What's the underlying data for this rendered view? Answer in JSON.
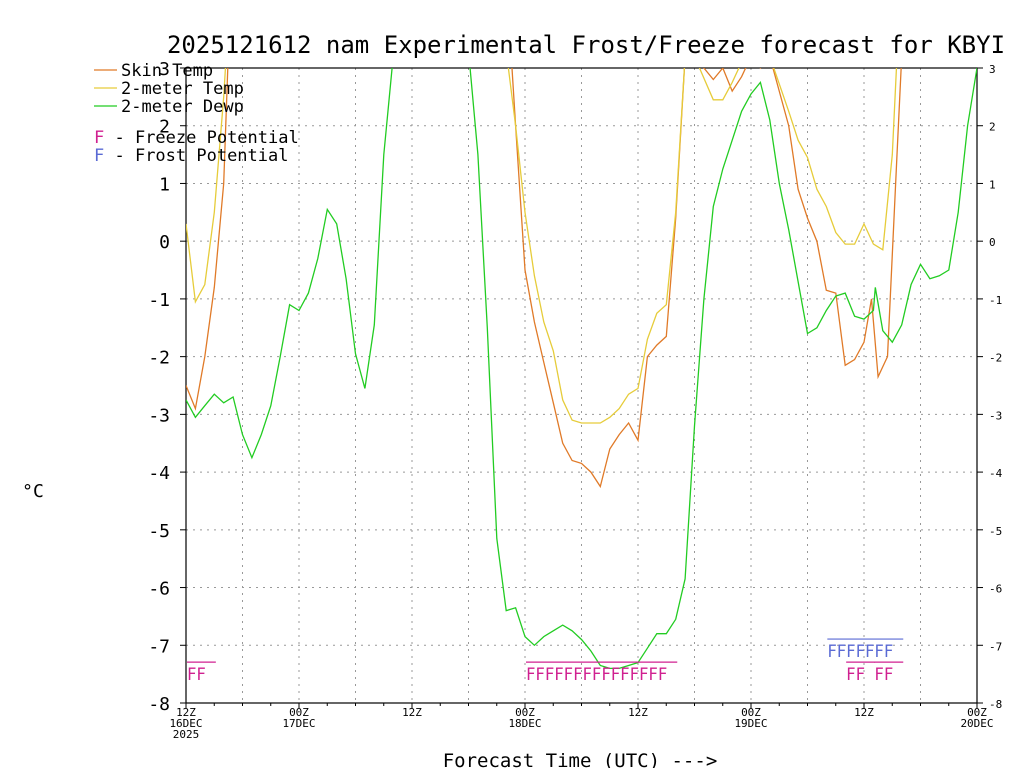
{
  "chart_data": {
    "type": "line",
    "title": "2025121612 nam Experimental Frost/Freeze forecast for KBYI",
    "xlabel": "Forecast Time (UTC) --->",
    "ylabel": "°C",
    "ylim": [
      -8,
      3
    ],
    "yticks": [
      "-8",
      "-7",
      "-6",
      "-5",
      "-4",
      "-3",
      "-2",
      "-1",
      "0",
      "1",
      "2",
      "3"
    ],
    "xlim_hours": [
      0,
      84
    ],
    "xticks": [
      {
        "hour": 0,
        "line1": "12Z",
        "line2": "16DEC",
        "line3": "2025"
      },
      {
        "hour": 12,
        "line1": "00Z",
        "line2": "17DEC",
        "line3": ""
      },
      {
        "hour": 24,
        "line1": "12Z",
        "line2": "",
        "line3": ""
      },
      {
        "hour": 36,
        "line1": "00Z",
        "line2": "18DEC",
        "line3": ""
      },
      {
        "hour": 48,
        "line1": "12Z",
        "line2": "",
        "line3": ""
      },
      {
        "hour": 60,
        "line1": "00Z",
        "line2": "19DEC",
        "line3": ""
      },
      {
        "hour": 72,
        "line1": "12Z",
        "line2": "",
        "line3": ""
      },
      {
        "hour": 84,
        "line1": "00Z",
        "line2": "20DEC",
        "line3": ""
      }
    ],
    "series": [
      {
        "name": "Skin Temp",
        "color": "#e07a28",
        "points": [
          [
            0,
            -2.5
          ],
          [
            1,
            -2.9
          ],
          [
            2,
            -2.0
          ],
          [
            3,
            -0.8
          ],
          [
            4,
            1.0
          ],
          [
            4.5,
            3.3
          ],
          [
            34.5,
            3.3
          ],
          [
            35,
            2.0
          ],
          [
            36,
            -0.5
          ],
          [
            37,
            -1.4
          ],
          [
            38,
            -2.1
          ],
          [
            39,
            -2.8
          ],
          [
            40,
            -3.5
          ],
          [
            41,
            -3.8
          ],
          [
            42,
            -3.85
          ],
          [
            43,
            -4.0
          ],
          [
            44,
            -4.25
          ],
          [
            45,
            -3.6
          ],
          [
            46,
            -3.35
          ],
          [
            47,
            -3.15
          ],
          [
            48,
            -3.45
          ],
          [
            49,
            -2.0
          ],
          [
            50,
            -1.8
          ],
          [
            51,
            -1.65
          ],
          [
            52,
            0.4
          ],
          [
            53,
            3.2
          ],
          [
            54,
            3.2
          ],
          [
            56,
            2.8
          ],
          [
            57,
            3.0
          ],
          [
            58,
            2.6
          ],
          [
            59,
            2.85
          ],
          [
            60,
            3.2
          ],
          [
            61,
            3.0
          ],
          [
            62,
            3.2
          ],
          [
            64,
            2.0
          ],
          [
            65,
            0.9
          ],
          [
            66,
            0.4
          ],
          [
            67,
            0.0
          ],
          [
            68,
            -0.85
          ],
          [
            69,
            -0.9
          ],
          [
            70,
            -2.15
          ],
          [
            71,
            -2.05
          ],
          [
            72,
            -1.75
          ],
          [
            72.8,
            -1.0
          ],
          [
            73.5,
            -2.35
          ],
          [
            74.5,
            -2.0
          ],
          [
            75.5,
            1.5
          ],
          [
            76,
            3.2
          ]
        ]
      },
      {
        "name": "2-meter Temp",
        "color": "#e6cc3a",
        "points": [
          [
            0,
            0.3
          ],
          [
            1,
            -1.05
          ],
          [
            2,
            -0.75
          ],
          [
            3,
            0.5
          ],
          [
            4,
            2.5
          ],
          [
            4.3,
            3.3
          ],
          [
            34,
            3.3
          ],
          [
            35,
            2.0
          ],
          [
            36,
            0.5
          ],
          [
            37,
            -0.6
          ],
          [
            38,
            -1.4
          ],
          [
            39,
            -1.9
          ],
          [
            40,
            -2.75
          ],
          [
            41,
            -3.1
          ],
          [
            42,
            -3.15
          ],
          [
            43,
            -3.15
          ],
          [
            44,
            -3.15
          ],
          [
            45,
            -3.05
          ],
          [
            46,
            -2.9
          ],
          [
            47,
            -2.65
          ],
          [
            48,
            -2.55
          ],
          [
            49,
            -1.7
          ],
          [
            50,
            -1.25
          ],
          [
            51,
            -1.1
          ],
          [
            52,
            0.5
          ],
          [
            53,
            3.2
          ],
          [
            54,
            3.2
          ],
          [
            56,
            2.45
          ],
          [
            57,
            2.45
          ],
          [
            58,
            2.75
          ],
          [
            59,
            3.1
          ],
          [
            60,
            3.2
          ],
          [
            61,
            3.15
          ],
          [
            62,
            3.2
          ],
          [
            64,
            2.25
          ],
          [
            65,
            1.75
          ],
          [
            66,
            1.45
          ],
          [
            67,
            0.9
          ],
          [
            68,
            0.6
          ],
          [
            69,
            0.15
          ],
          [
            70,
            -0.05
          ],
          [
            71,
            -0.05
          ],
          [
            72,
            0.3
          ],
          [
            73,
            -0.05
          ],
          [
            74,
            -0.15
          ],
          [
            75,
            1.5
          ],
          [
            75.5,
            3.2
          ]
        ]
      },
      {
        "name": "2-meter Dewp",
        "color": "#22cc22",
        "points": [
          [
            0,
            -2.75
          ],
          [
            1,
            -3.05
          ],
          [
            2,
            -2.85
          ],
          [
            3,
            -2.65
          ],
          [
            4,
            -2.8
          ],
          [
            5,
            -2.7
          ],
          [
            6,
            -3.35
          ],
          [
            7,
            -3.75
          ],
          [
            8,
            -3.35
          ],
          [
            9,
            -2.85
          ],
          [
            10,
            -2.0
          ],
          [
            11,
            -1.1
          ],
          [
            12,
            -1.2
          ],
          [
            13,
            -0.9
          ],
          [
            14,
            -0.3
          ],
          [
            15,
            0.55
          ],
          [
            16,
            0.3
          ],
          [
            17,
            -0.65
          ],
          [
            18,
            -1.95
          ],
          [
            19,
            -2.55
          ],
          [
            20,
            -1.45
          ],
          [
            21,
            1.5
          ],
          [
            22,
            3.2
          ],
          [
            30,
            3.3
          ],
          [
            31,
            1.5
          ],
          [
            32,
            -1.5
          ],
          [
            33,
            -5.15
          ],
          [
            34,
            -6.4
          ],
          [
            35,
            -6.35
          ],
          [
            36,
            -6.85
          ],
          [
            37,
            -7.0
          ],
          [
            38,
            -6.85
          ],
          [
            39,
            -6.75
          ],
          [
            40,
            -6.65
          ],
          [
            41,
            -6.75
          ],
          [
            42,
            -6.9
          ],
          [
            43,
            -7.1
          ],
          [
            44,
            -7.35
          ],
          [
            45,
            -7.4
          ],
          [
            46,
            -7.4
          ],
          [
            47,
            -7.35
          ],
          [
            48,
            -7.3
          ],
          [
            49,
            -7.05
          ],
          [
            50,
            -6.8
          ],
          [
            51,
            -6.8
          ],
          [
            52,
            -6.55
          ],
          [
            53,
            -5.85
          ],
          [
            54,
            -3.2
          ],
          [
            55,
            -1.0
          ],
          [
            56,
            0.6
          ],
          [
            57,
            1.25
          ],
          [
            58,
            1.75
          ],
          [
            59,
            2.25
          ],
          [
            60,
            2.55
          ],
          [
            61,
            2.75
          ],
          [
            62,
            2.1
          ],
          [
            63,
            1.0
          ],
          [
            64,
            0.2
          ],
          [
            65,
            -0.7
          ],
          [
            66,
            -1.6
          ],
          [
            67,
            -1.5
          ],
          [
            68,
            -1.2
          ],
          [
            69,
            -0.95
          ],
          [
            70,
            -0.9
          ],
          [
            71,
            -1.3
          ],
          [
            72,
            -1.35
          ],
          [
            73,
            -1.2
          ],
          [
            73.2,
            -0.8
          ],
          [
            74,
            -1.55
          ],
          [
            75,
            -1.75
          ],
          [
            76,
            -1.45
          ],
          [
            77,
            -0.75
          ],
          [
            78,
            -0.4
          ],
          [
            79,
            -0.65
          ],
          [
            80,
            -0.6
          ],
          [
            81,
            -0.5
          ],
          [
            82,
            0.5
          ],
          [
            83,
            2.0
          ],
          [
            84,
            3.0
          ]
        ]
      }
    ],
    "legend": {
      "position": "top-left",
      "entries": [
        {
          "label": "Skin Temp",
          "color": "#e07a28"
        },
        {
          "label": "2-meter Temp",
          "color": "#e6cc3a"
        },
        {
          "label": "2-meter Dewp",
          "color": "#22cc22"
        }
      ],
      "flag_entries": [
        {
          "letter": "F",
          "text": " - Freeze Potential",
          "color": "#d02090"
        },
        {
          "letter": "F",
          "text": " - Frost Potential",
          "color": "#5a6ad4"
        }
      ]
    },
    "freeze_flags": {
      "color": "#d02090",
      "y_level": -7.5,
      "groups": [
        {
          "start_hour": 0,
          "label": "FF",
          "count": 2
        },
        {
          "start_hour": 36,
          "label": "FFFFFFFFFFFFFFF",
          "count": 15
        },
        {
          "start_hour": 70,
          "label": "FF",
          "count": 2
        },
        {
          "start_hour": 73,
          "label": "FF",
          "count": 2
        }
      ]
    },
    "frost_flags": {
      "color": "#5a6ad4",
      "y_level": -7.1,
      "groups": [
        {
          "start_hour": 68,
          "label": "FFFFFFF",
          "count": 7
        }
      ]
    }
  }
}
